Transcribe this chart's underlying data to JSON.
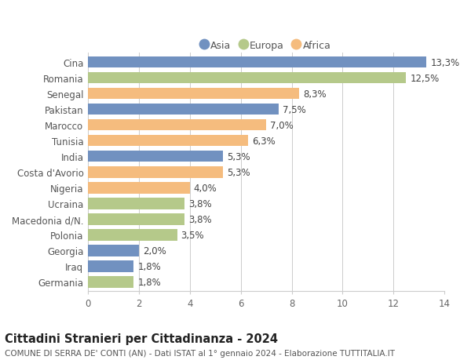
{
  "categories": [
    "Cina",
    "Romania",
    "Senegal",
    "Pakistan",
    "Marocco",
    "Tunisia",
    "India",
    "Costa d'Avorio",
    "Nigeria",
    "Ucraina",
    "Macedonia d/N.",
    "Polonia",
    "Georgia",
    "Iraq",
    "Germania"
  ],
  "values": [
    13.3,
    12.5,
    8.3,
    7.5,
    7.0,
    6.3,
    5.3,
    5.3,
    4.0,
    3.8,
    3.8,
    3.5,
    2.0,
    1.8,
    1.8
  ],
  "labels": [
    "13,3%",
    "12,5%",
    "8,3%",
    "7,5%",
    "7,0%",
    "6,3%",
    "5,3%",
    "5,3%",
    "4,0%",
    "3,8%",
    "3,8%",
    "3,5%",
    "2,0%",
    "1,8%",
    "1,8%"
  ],
  "continents": [
    "Asia",
    "Europa",
    "Africa",
    "Asia",
    "Africa",
    "Africa",
    "Asia",
    "Africa",
    "Africa",
    "Europa",
    "Europa",
    "Europa",
    "Asia",
    "Asia",
    "Europa"
  ],
  "colors": {
    "Asia": "#7191c0",
    "Europa": "#b5c98a",
    "Africa": "#f5bc7e"
  },
  "xlim": [
    0,
    14
  ],
  "xticks": [
    0,
    2,
    4,
    6,
    8,
    10,
    12,
    14
  ],
  "title": "Cittadini Stranieri per Cittadinanza - 2024",
  "subtitle": "COMUNE DI SERRA DE' CONTI (AN) - Dati ISTAT al 1° gennaio 2024 - Elaborazione TUTTITALIA.IT",
  "background_color": "#ffffff",
  "grid_color": "#cccccc",
  "bar_height": 0.72,
  "label_fontsize": 8.5,
  "tick_fontsize": 8.5,
  "title_fontsize": 10.5,
  "subtitle_fontsize": 7.5,
  "legend_items": [
    "Asia",
    "Europa",
    "Africa"
  ]
}
